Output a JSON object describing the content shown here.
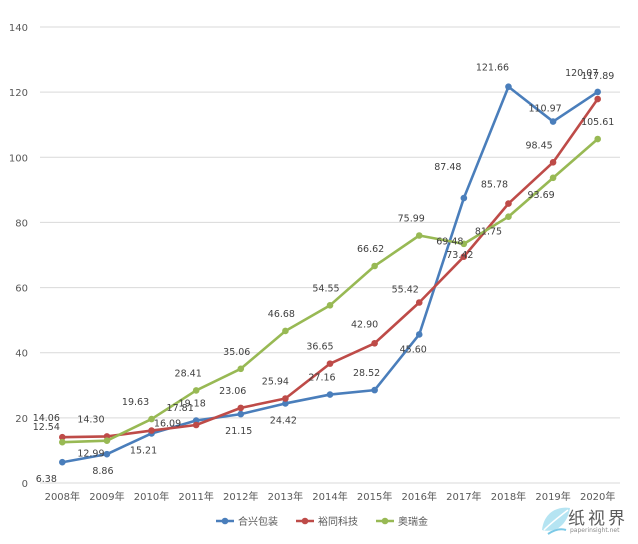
{
  "chart_data": {
    "type": "line",
    "categories": [
      "2008年",
      "2009年",
      "2010年",
      "2011年",
      "2012年",
      "2013年",
      "2014年",
      "2015年",
      "2016年",
      "2017年",
      "2018年",
      "2019年",
      "2020年"
    ],
    "series": [
      {
        "name": "合兴包装",
        "color": "#4a7ebb",
        "values": [
          6.38,
          8.86,
          15.21,
          19.18,
          21.15,
          24.42,
          27.16,
          28.52,
          45.6,
          87.48,
          121.66,
          110.97,
          120.07
        ]
      },
      {
        "name": "裕同科技",
        "color": "#be4b48",
        "values": [
          14.06,
          14.3,
          16.09,
          17.81,
          23.06,
          25.94,
          36.65,
          42.9,
          55.42,
          69.48,
          85.78,
          98.45,
          117.89
        ]
      },
      {
        "name": "奥瑞金",
        "color": "#98b954",
        "values": [
          12.54,
          12.99,
          19.63,
          28.41,
          35.06,
          46.68,
          54.55,
          66.62,
          75.99,
          73.42,
          81.75,
          93.69,
          105.61
        ]
      }
    ],
    "ylim": [
      0,
      140
    ],
    "yticks": [
      0,
      20,
      40,
      60,
      80,
      100,
      120,
      140
    ],
    "grid": true,
    "legend_position": "bottom"
  },
  "watermark": {
    "title": "纸视界",
    "url": "paperinsight.net"
  }
}
